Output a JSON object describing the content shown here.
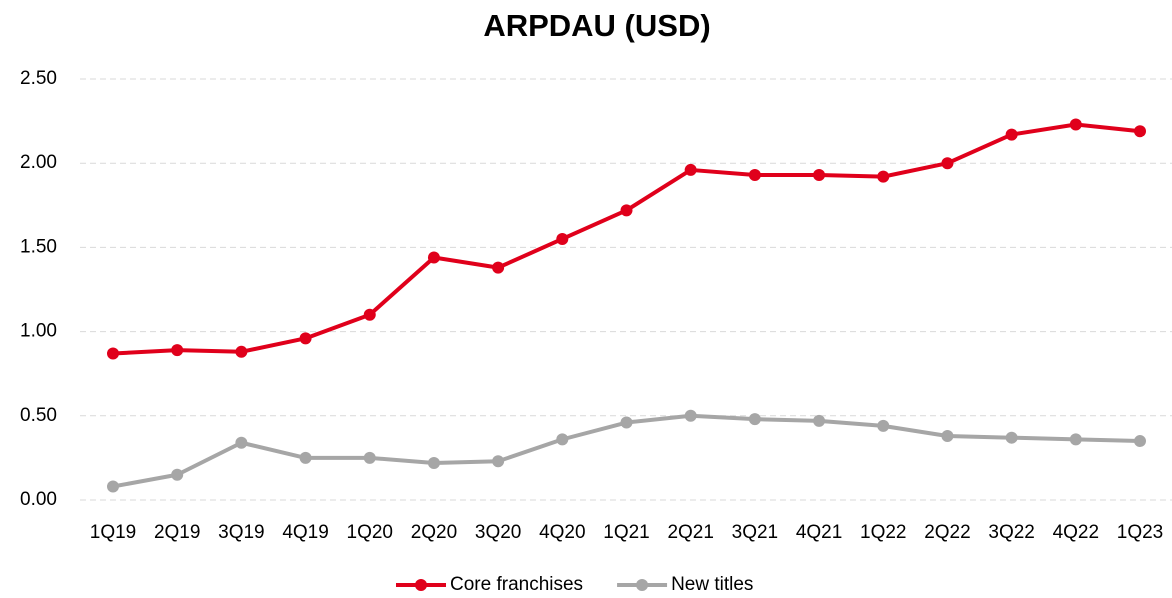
{
  "chart_data": {
    "type": "line",
    "title": "ARPDAU (USD)",
    "categories": [
      "1Q19",
      "2Q19",
      "3Q19",
      "4Q19",
      "1Q20",
      "2Q20",
      "3Q20",
      "4Q20",
      "1Q21",
      "2Q21",
      "3Q21",
      "4Q21",
      "1Q22",
      "2Q22",
      "3Q22",
      "4Q22",
      "1Q23"
    ],
    "series": [
      {
        "name": "Core franchises",
        "color": "#e0001b",
        "values": [
          0.87,
          0.89,
          0.88,
          0.96,
          1.1,
          1.44,
          1.38,
          1.55,
          1.72,
          1.96,
          1.93,
          1.93,
          1.92,
          2.0,
          2.17,
          2.23,
          2.19
        ]
      },
      {
        "name": "New titles",
        "color": "#a6a6a6",
        "values": [
          0.08,
          0.15,
          0.34,
          0.25,
          0.25,
          0.22,
          0.23,
          0.36,
          0.46,
          0.5,
          0.48,
          0.47,
          0.44,
          0.38,
          0.37,
          0.36,
          0.35
        ]
      }
    ],
    "ylim": [
      0,
      2.5
    ],
    "yticks": [
      {
        "value": 0,
        "label": "0.00"
      },
      {
        "value": 0.5,
        "label": "0.50"
      },
      {
        "value": 1,
        "label": "1.00"
      },
      {
        "value": 1.5,
        "label": "1.50"
      },
      {
        "value": 2,
        "label": "2.00"
      },
      {
        "value": 2.5,
        "label": "2.50"
      }
    ],
    "grid": true,
    "legend": "bottom"
  }
}
